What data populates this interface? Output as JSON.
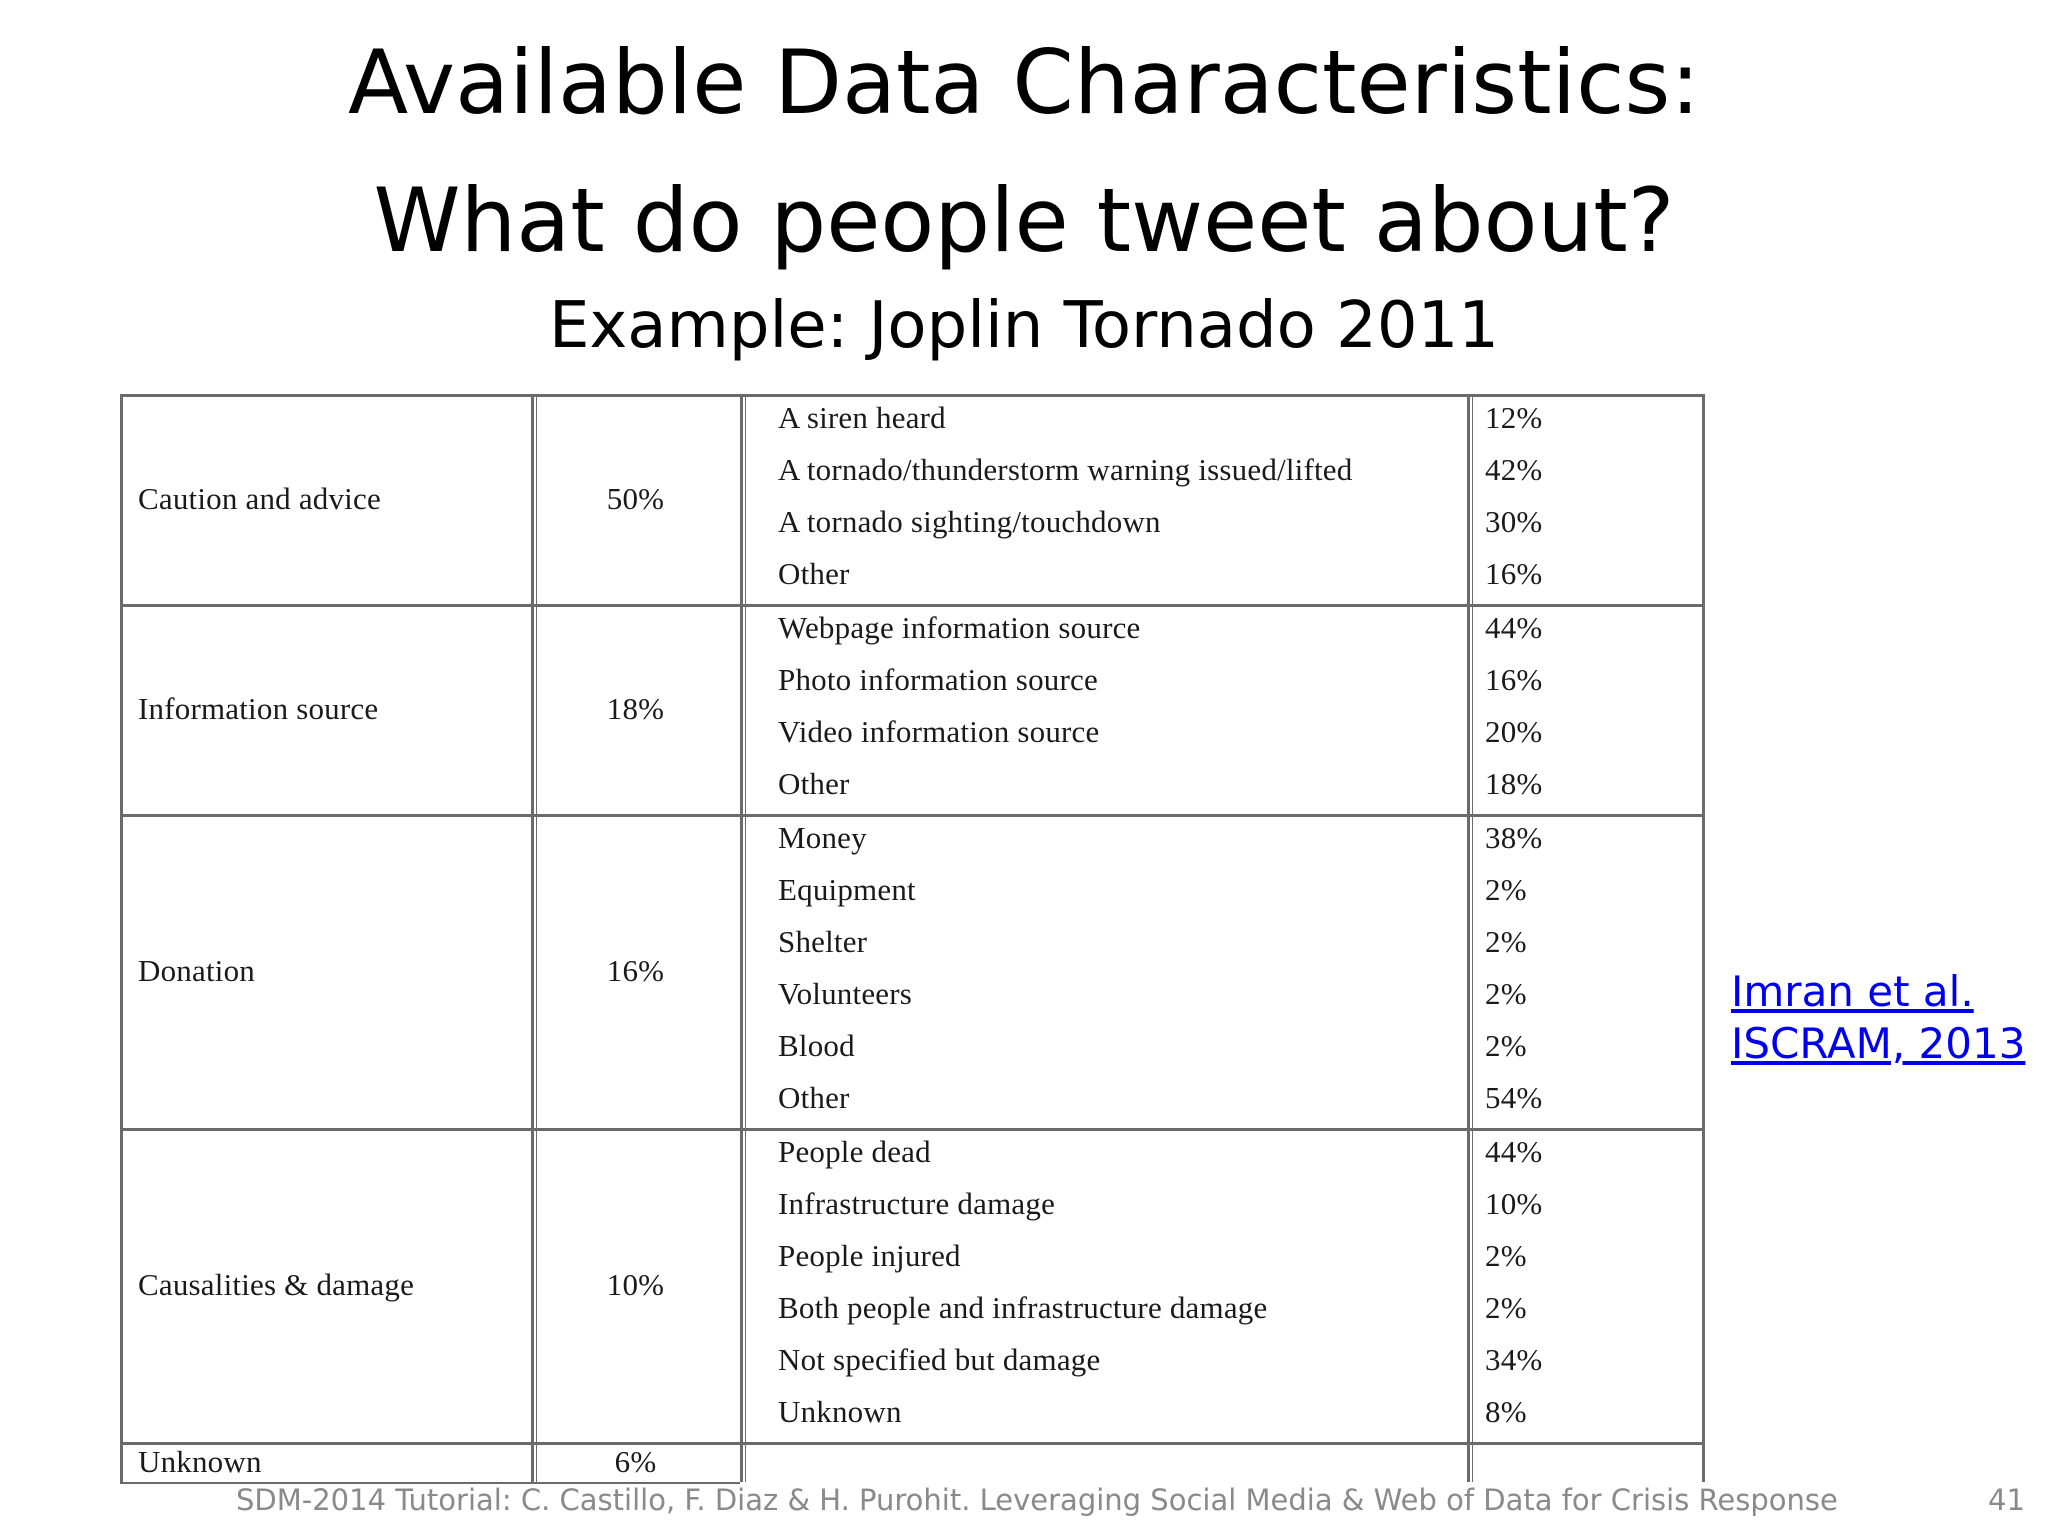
{
  "slide": {
    "title_line1": "Available Data Characteristics:",
    "title_line2": "What do people tweet about?",
    "subtitle": "Example: Joplin Tornado 2011",
    "citation_line1": "Imran et al.",
    "citation_line2": "ISCRAM, 2013",
    "footer": "SDM-2014 Tutorial: C. Castillo, F. Diaz & H. Purohit. Leveraging Social Media & Web of Data for Crisis Response",
    "page_number": "41"
  },
  "table": {
    "groups": [
      {
        "category": "Caution and advice",
        "share": "50%",
        "items": [
          {
            "label": "A siren heard",
            "value": "12%"
          },
          {
            "label": "A tornado/thunderstorm warning issued/lifted",
            "value": "42%"
          },
          {
            "label": "A tornado sighting/touchdown",
            "value": "30%"
          },
          {
            "label": "Other",
            "value": "16%"
          }
        ]
      },
      {
        "category": "Information source",
        "share": "18%",
        "items": [
          {
            "label": "Webpage information source",
            "value": "44%"
          },
          {
            "label": "Photo information source",
            "value": "16%"
          },
          {
            "label": "Video information source",
            "value": "20%"
          },
          {
            "label": "Other",
            "value": "18%"
          }
        ]
      },
      {
        "category": "Donation",
        "share": "16%",
        "items": [
          {
            "label": "Money",
            "value": "38%"
          },
          {
            "label": "Equipment",
            "value": "2%"
          },
          {
            "label": "Shelter",
            "value": "2%"
          },
          {
            "label": "Volunteers",
            "value": "2%"
          },
          {
            "label": "Blood",
            "value": "2%"
          },
          {
            "label": "Other",
            "value": "54%"
          }
        ]
      },
      {
        "category": "Causalities & damage",
        "share": "10%",
        "items": [
          {
            "label": "People dead",
            "value": "44%"
          },
          {
            "label": "Infrastructure damage",
            "value": "10%"
          },
          {
            "label": "People injured",
            "value": "2%"
          },
          {
            "label": "Both people and infrastructure damage",
            "value": "2%"
          },
          {
            "label": "Not specified but damage",
            "value": "34%"
          },
          {
            "label": "Unknown",
            "value": "8%"
          }
        ]
      },
      {
        "category": "Unknown",
        "share": "6%",
        "items": []
      }
    ]
  }
}
